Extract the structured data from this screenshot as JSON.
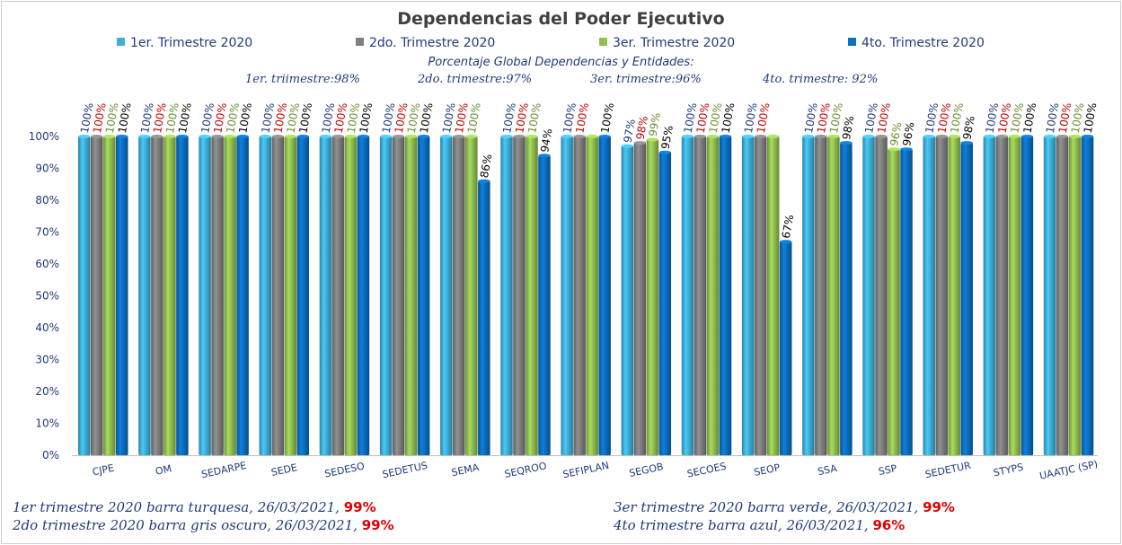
{
  "title": "Dependencias del Poder Ejecutivo",
  "summary": {
    "heading": "Porcentaje Global  Dependencias y Entidades:",
    "q1": "1er. triimestre:98%",
    "q2": "2do. trimestre:97%",
    "q3": "3er. trimestre:96%",
    "q4": "4to. trimestre: 92%"
  },
  "footer": {
    "left1_text": "1er trimestre  2020 barra turquesa,   26/03/2021, ",
    "left1_pct": "99%",
    "left2_text": "2do trimestre 2020 barra gris oscuro,  26/03/2021,  ",
    "left2_pct": "99%",
    "right1_text": "3er trimestre 2020 barra verde,   26/03/2021,  ",
    "right1_pct": "99%",
    "right2_text": "4to trimestre barra azul, 26/03/2021,  ",
    "right2_pct": "96%"
  },
  "colors": {
    "q1": "#3fb0d9",
    "q2": "#7f7f7f",
    "q3": "#92c050",
    "q4": "#0c6fc0",
    "label_q1": "#1f3a7a",
    "label_q2": "#c00000",
    "label_q3": "#6b8f2f",
    "label_q4": "#000000"
  },
  "chart_data": {
    "type": "bar",
    "title": "Dependencias del Poder Ejecutivo",
    "categories": [
      "CJPE",
      "OM",
      "SEDARPE",
      "SEDE",
      "SEDESO",
      "SEDETUS",
      "SEMA",
      "SEQROO",
      "SEFIPLAN",
      "SEGOB",
      "SECOES",
      "SEOP",
      "SSA",
      "SSP",
      "SEDETUR",
      "STYPS",
      "UAATJC (SP)"
    ],
    "series": [
      {
        "name": "1er. Trimestre 2020",
        "values": [
          100,
          100,
          100,
          100,
          100,
          100,
          100,
          100,
          100,
          97,
          100,
          100,
          100,
          100,
          100,
          100,
          100
        ]
      },
      {
        "name": "2do. Trimestre 2020",
        "values": [
          100,
          100,
          100,
          100,
          100,
          100,
          100,
          100,
          100,
          98,
          100,
          100,
          100,
          100,
          100,
          100,
          100
        ]
      },
      {
        "name": "3er. Trimestre 2020",
        "values": [
          100,
          100,
          100,
          100,
          100,
          100,
          100,
          100,
          100,
          99,
          100,
          100,
          100,
          96,
          100,
          100,
          100
        ]
      },
      {
        "name": "4to. Trimestre 2020",
        "values": [
          100,
          100,
          100,
          100,
          100,
          100,
          86,
          94,
          100,
          95,
          100,
          67,
          98,
          96,
          98,
          100,
          100
        ]
      }
    ],
    "q3_missing": [
      "SEFIPLAN",
      "SEOP"
    ],
    "yticks": [
      "0%",
      "10%",
      "20%",
      "30%",
      "40%",
      "50%",
      "60%",
      "70%",
      "80%",
      "90%",
      "100%"
    ],
    "ylim": [
      0,
      100
    ],
    "grid": false,
    "legend_position": "top"
  }
}
